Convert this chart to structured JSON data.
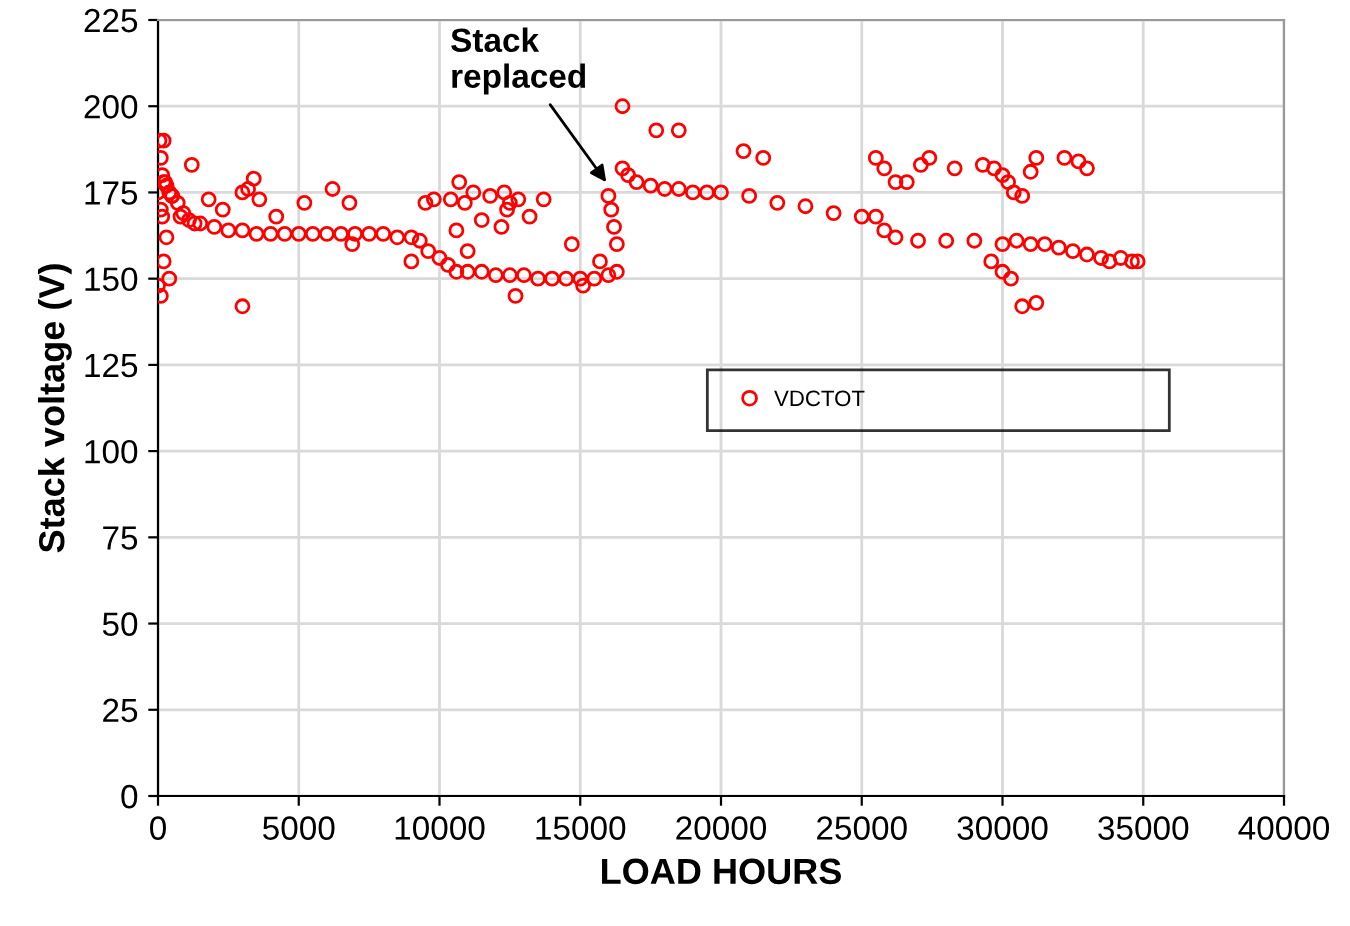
{
  "chart_data": {
    "type": "scatter",
    "xlabel": "LOAD HOURS",
    "ylabel": "Stack voltage (V)",
    "xlim": [
      0,
      40000
    ],
    "ylim": [
      0,
      225
    ],
    "xticks": [
      0,
      5000,
      10000,
      15000,
      20000,
      25000,
      30000,
      35000,
      40000
    ],
    "yticks": [
      0,
      25,
      50,
      75,
      100,
      125,
      150,
      175,
      200,
      225
    ],
    "grid": true,
    "legend": "right",
    "marker": "circle",
    "annotations": [
      {
        "text": "Stack\nreplaced",
        "x": 16100,
        "y": 176
      }
    ],
    "series": [
      {
        "name": "VDCTOT",
        "color": "#ff0000",
        "x": [
          0,
          50,
          100,
          150,
          200,
          250,
          300,
          400,
          500,
          700,
          900,
          1100,
          1300,
          1500,
          2000,
          2500,
          3000,
          3500,
          4000,
          4500,
          5000,
          5500,
          6000,
          6500,
          7000,
          7500,
          8000,
          8500,
          9000,
          9300,
          9600,
          10000,
          10300,
          10600,
          11000,
          11500,
          12000,
          12500,
          13000,
          13500,
          14000,
          14500,
          15000,
          15500,
          16000,
          16300,
          16500,
          16700,
          17000,
          17500,
          18000,
          18500,
          19000,
          19500,
          20000,
          21000,
          22000,
          23000,
          24000,
          25000,
          25500,
          25800,
          26200,
          27000,
          28000,
          29000,
          30000,
          30500,
          31000,
          31500,
          32000,
          32500,
          33000,
          33500,
          33800,
          34200,
          34600,
          34800,
          100,
          150,
          200,
          300,
          400,
          500,
          800,
          1200,
          1800,
          2300,
          3000,
          3000,
          3200,
          3400,
          3600,
          4200,
          5200,
          6200,
          6900,
          6800,
          9000,
          9500,
          10600,
          10700,
          11000,
          11200,
          11800,
          12300,
          12500,
          12800,
          13200,
          15100,
          15700,
          16000,
          16100,
          16200,
          16300,
          16500,
          17700,
          18500,
          20800,
          21500,
          25500,
          25800,
          26200,
          26600,
          27100,
          27400,
          28300,
          29300,
          29700,
          30000,
          30200,
          30400,
          30700,
          31000,
          31200,
          32200,
          32700,
          33000,
          0,
          100,
          200,
          9800,
          10400,
          10900,
          11500,
          12200,
          12400,
          13700,
          14700,
          29600,
          30000,
          30300,
          30700,
          31200,
          12700
        ],
        "values": [
          175,
          190,
          185,
          180,
          178,
          178,
          177,
          175,
          174,
          172,
          169,
          167,
          166,
          166,
          165,
          164,
          164,
          163,
          163,
          163,
          163,
          163,
          163,
          163,
          163,
          163,
          163,
          162,
          162,
          161,
          158,
          156,
          154,
          152,
          152,
          152,
          151,
          151,
          151,
          150,
          150,
          150,
          150,
          150,
          151,
          152,
          182,
          180,
          178,
          177,
          176,
          176,
          175,
          175,
          175,
          174,
          172,
          171,
          169,
          168,
          168,
          164,
          162,
          161,
          161,
          161,
          160,
          161,
          160,
          160,
          159,
          158,
          157,
          156,
          155,
          156,
          155,
          155,
          170,
          168,
          155,
          162,
          150,
          174,
          168,
          183,
          173,
          170,
          175,
          142,
          176,
          179,
          173,
          168,
          172,
          176,
          160,
          172,
          155,
          172,
          164,
          178,
          158,
          175,
          174,
          175,
          172,
          173,
          168,
          148,
          155,
          174,
          170,
          165,
          160,
          200,
          193,
          193,
          187,
          185,
          185,
          182,
          178,
          178,
          183,
          185,
          182,
          183,
          182,
          180,
          178,
          175,
          174,
          181,
          185,
          185,
          184,
          182,
          148,
          145,
          190,
          173,
          173,
          172,
          167,
          165,
          170,
          173,
          160,
          155,
          152,
          150,
          142,
          143,
          145
        ]
      }
    ]
  }
}
